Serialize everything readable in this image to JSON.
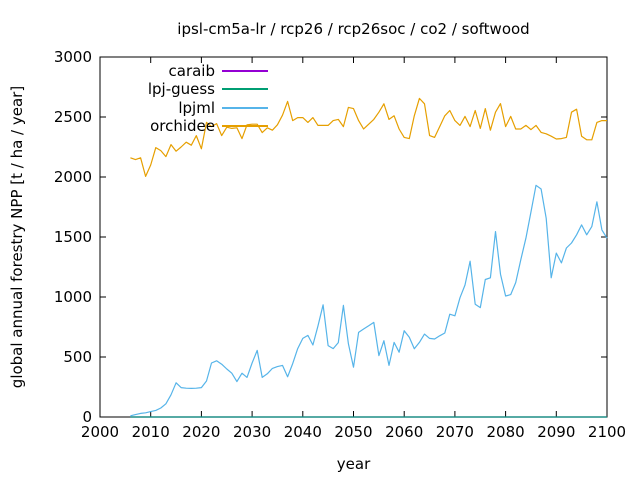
{
  "window": {
    "background": "#ffffff",
    "text_color": "#000000",
    "axis_color": "#000000"
  },
  "chart_data": {
    "type": "line",
    "title": "ipsl-cm5a-lr / rcp26 / rcp26soc / co2 / softwood",
    "xlabel": "year",
    "ylabel": "global annual forestry NPP [t / ha / year]",
    "xlim": [
      2000,
      2100
    ],
    "ylim": [
      0,
      3000
    ],
    "xticks": [
      2000,
      2010,
      2020,
      2030,
      2040,
      2050,
      2060,
      2070,
      2080,
      2090,
      2100
    ],
    "yticks": [
      0,
      500,
      1000,
      1500,
      2000,
      2500,
      3000
    ],
    "grid": false,
    "legend_position": "top-left-inside",
    "x_start": 2006,
    "x_step": 1,
    "series": [
      {
        "name": "caraib",
        "color": "#9400d3",
        "values": [
          0,
          0,
          0,
          0,
          0,
          0,
          0,
          0,
          0,
          0,
          0,
          0,
          0,
          0,
          0,
          0,
          0,
          0,
          0,
          0,
          0,
          0,
          0,
          0,
          0,
          0,
          0,
          0,
          0,
          0,
          0,
          0,
          0,
          0,
          0,
          0,
          0,
          0,
          0,
          0,
          0,
          0,
          0,
          0,
          0,
          0,
          0,
          0,
          0,
          0,
          0,
          0,
          0,
          0,
          0,
          0,
          0,
          0,
          0,
          0,
          0,
          0,
          0,
          0,
          0,
          0,
          0,
          0,
          0,
          0,
          0,
          0,
          0,
          0,
          0,
          0,
          0,
          0,
          0,
          0,
          0,
          0,
          0,
          0,
          0,
          0,
          0,
          0,
          0,
          0,
          0,
          0,
          0,
          0,
          0
        ]
      },
      {
        "name": "lpj-guess",
        "color": "#009e73",
        "values": [
          0,
          0,
          0,
          0,
          0,
          0,
          0,
          0,
          0,
          0,
          0,
          0,
          0,
          0,
          0,
          0,
          0,
          0,
          0,
          0,
          0,
          0,
          0,
          0,
          0,
          0,
          0,
          0,
          0,
          0,
          0,
          0,
          0,
          0,
          0,
          0,
          0,
          0,
          0,
          0,
          0,
          0,
          0,
          0,
          0,
          0,
          0,
          0,
          0,
          0,
          0,
          0,
          0,
          0,
          0,
          0,
          0,
          0,
          0,
          0,
          0,
          0,
          0,
          0,
          0,
          0,
          0,
          0,
          0,
          0,
          0,
          0,
          0,
          0,
          0,
          0,
          0,
          0,
          0,
          0,
          0,
          0,
          0,
          0,
          0,
          0,
          0,
          0,
          0,
          0,
          0,
          0,
          0,
          0,
          0
        ]
      },
      {
        "name": "lpjml",
        "color": "#56b4e9",
        "values": [
          10,
          20,
          30,
          35,
          45,
          55,
          75,
          110,
          185,
          285,
          245,
          240,
          238,
          240,
          245,
          300,
          450,
          468,
          440,
          400,
          365,
          295,
          365,
          330,
          450,
          555,
          330,
          360,
          405,
          420,
          430,
          335,
          445,
          570,
          655,
          680,
          600,
          760,
          935,
          595,
          570,
          620,
          930,
          610,
          415,
          705,
          733,
          760,
          788,
          512,
          636,
          430,
          622,
          540,
          719,
          664,
          568,
          622,
          691,
          655,
          650,
          677,
          700,
          857,
          843,
          994,
          1100,
          1298,
          940,
          912,
          1146,
          1160,
          1545,
          1190,
          1008,
          1020,
          1120,
          1311,
          1490,
          1711,
          1931,
          1900,
          1656,
          1160,
          1366,
          1284,
          1408,
          1450,
          1518,
          1601,
          1518,
          1587,
          1793,
          1559,
          1490
        ]
      },
      {
        "name": "orchidee",
        "color": "#e69f00",
        "values": [
          2160,
          2145,
          2160,
          2005,
          2100,
          2245,
          2220,
          2170,
          2270,
          2215,
          2250,
          2290,
          2265,
          2345,
          2235,
          2455,
          2420,
          2445,
          2345,
          2415,
          2405,
          2410,
          2320,
          2435,
          2440,
          2440,
          2370,
          2410,
          2390,
          2435,
          2515,
          2630,
          2470,
          2495,
          2495,
          2455,
          2495,
          2430,
          2430,
          2430,
          2470,
          2480,
          2420,
          2580,
          2570,
          2470,
          2400,
          2440,
          2480,
          2540,
          2610,
          2480,
          2510,
          2400,
          2330,
          2320,
          2510,
          2655,
          2610,
          2345,
          2330,
          2420,
          2510,
          2554,
          2470,
          2430,
          2505,
          2420,
          2554,
          2405,
          2570,
          2390,
          2540,
          2612,
          2420,
          2505,
          2400,
          2400,
          2430,
          2395,
          2430,
          2372,
          2360,
          2340,
          2317,
          2320,
          2330,
          2540,
          2565,
          2340,
          2310,
          2310,
          2455,
          2470,
          2470
        ]
      }
    ]
  }
}
